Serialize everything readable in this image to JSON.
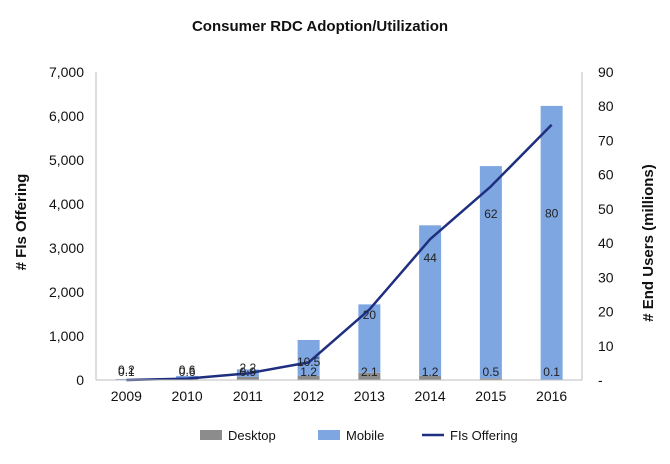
{
  "chart_data": {
    "type": "bar",
    "title": "Consumer RDC Adoption/Utilization",
    "categories": [
      "2009",
      "2010",
      "2011",
      "2012",
      "2013",
      "2014",
      "2015",
      "2016"
    ],
    "series": [
      {
        "name": "Desktop",
        "type": "bar",
        "axis": "right",
        "color": "#8c8c8c",
        "values": [
          0.1,
          0.6,
          0.9,
          1.2,
          2.1,
          1.2,
          0.5,
          0.1
        ],
        "labels": [
          "0.1",
          "0.6",
          "0.9",
          "1.2",
          "2.1",
          "1.2",
          "0.5",
          "0.1"
        ]
      },
      {
        "name": "Mobile",
        "type": "bar",
        "axis": "right",
        "color": "#7ea6e0",
        "values": [
          0.2,
          0.6,
          2.2,
          10.5,
          20,
          44,
          62,
          80
        ],
        "labels": [
          "0.2",
          "0.6",
          "2.2",
          "10.5",
          "20",
          "44",
          "62",
          "80"
        ]
      },
      {
        "name": "FIs Offering",
        "type": "line",
        "axis": "left",
        "color": "#1f2f7f",
        "values": [
          0,
          30,
          150,
          400,
          1600,
          3200,
          4400,
          5800
        ]
      }
    ],
    "ylabel_left": "# FIs Offering",
    "ylim_left": [
      0,
      7000
    ],
    "yticks_left": [
      "0",
      "1,000",
      "2,000",
      "3,000",
      "4,000",
      "5,000",
      "6,000",
      "7,000"
    ],
    "ylabel_right": "# End Users (millions)",
    "ylim_right": [
      0,
      90
    ],
    "yticks_right": [
      "-",
      "10",
      "20",
      "30",
      "40",
      "50",
      "60",
      "70",
      "80",
      "90"
    ],
    "grid": false,
    "legend_position": "bottom"
  }
}
